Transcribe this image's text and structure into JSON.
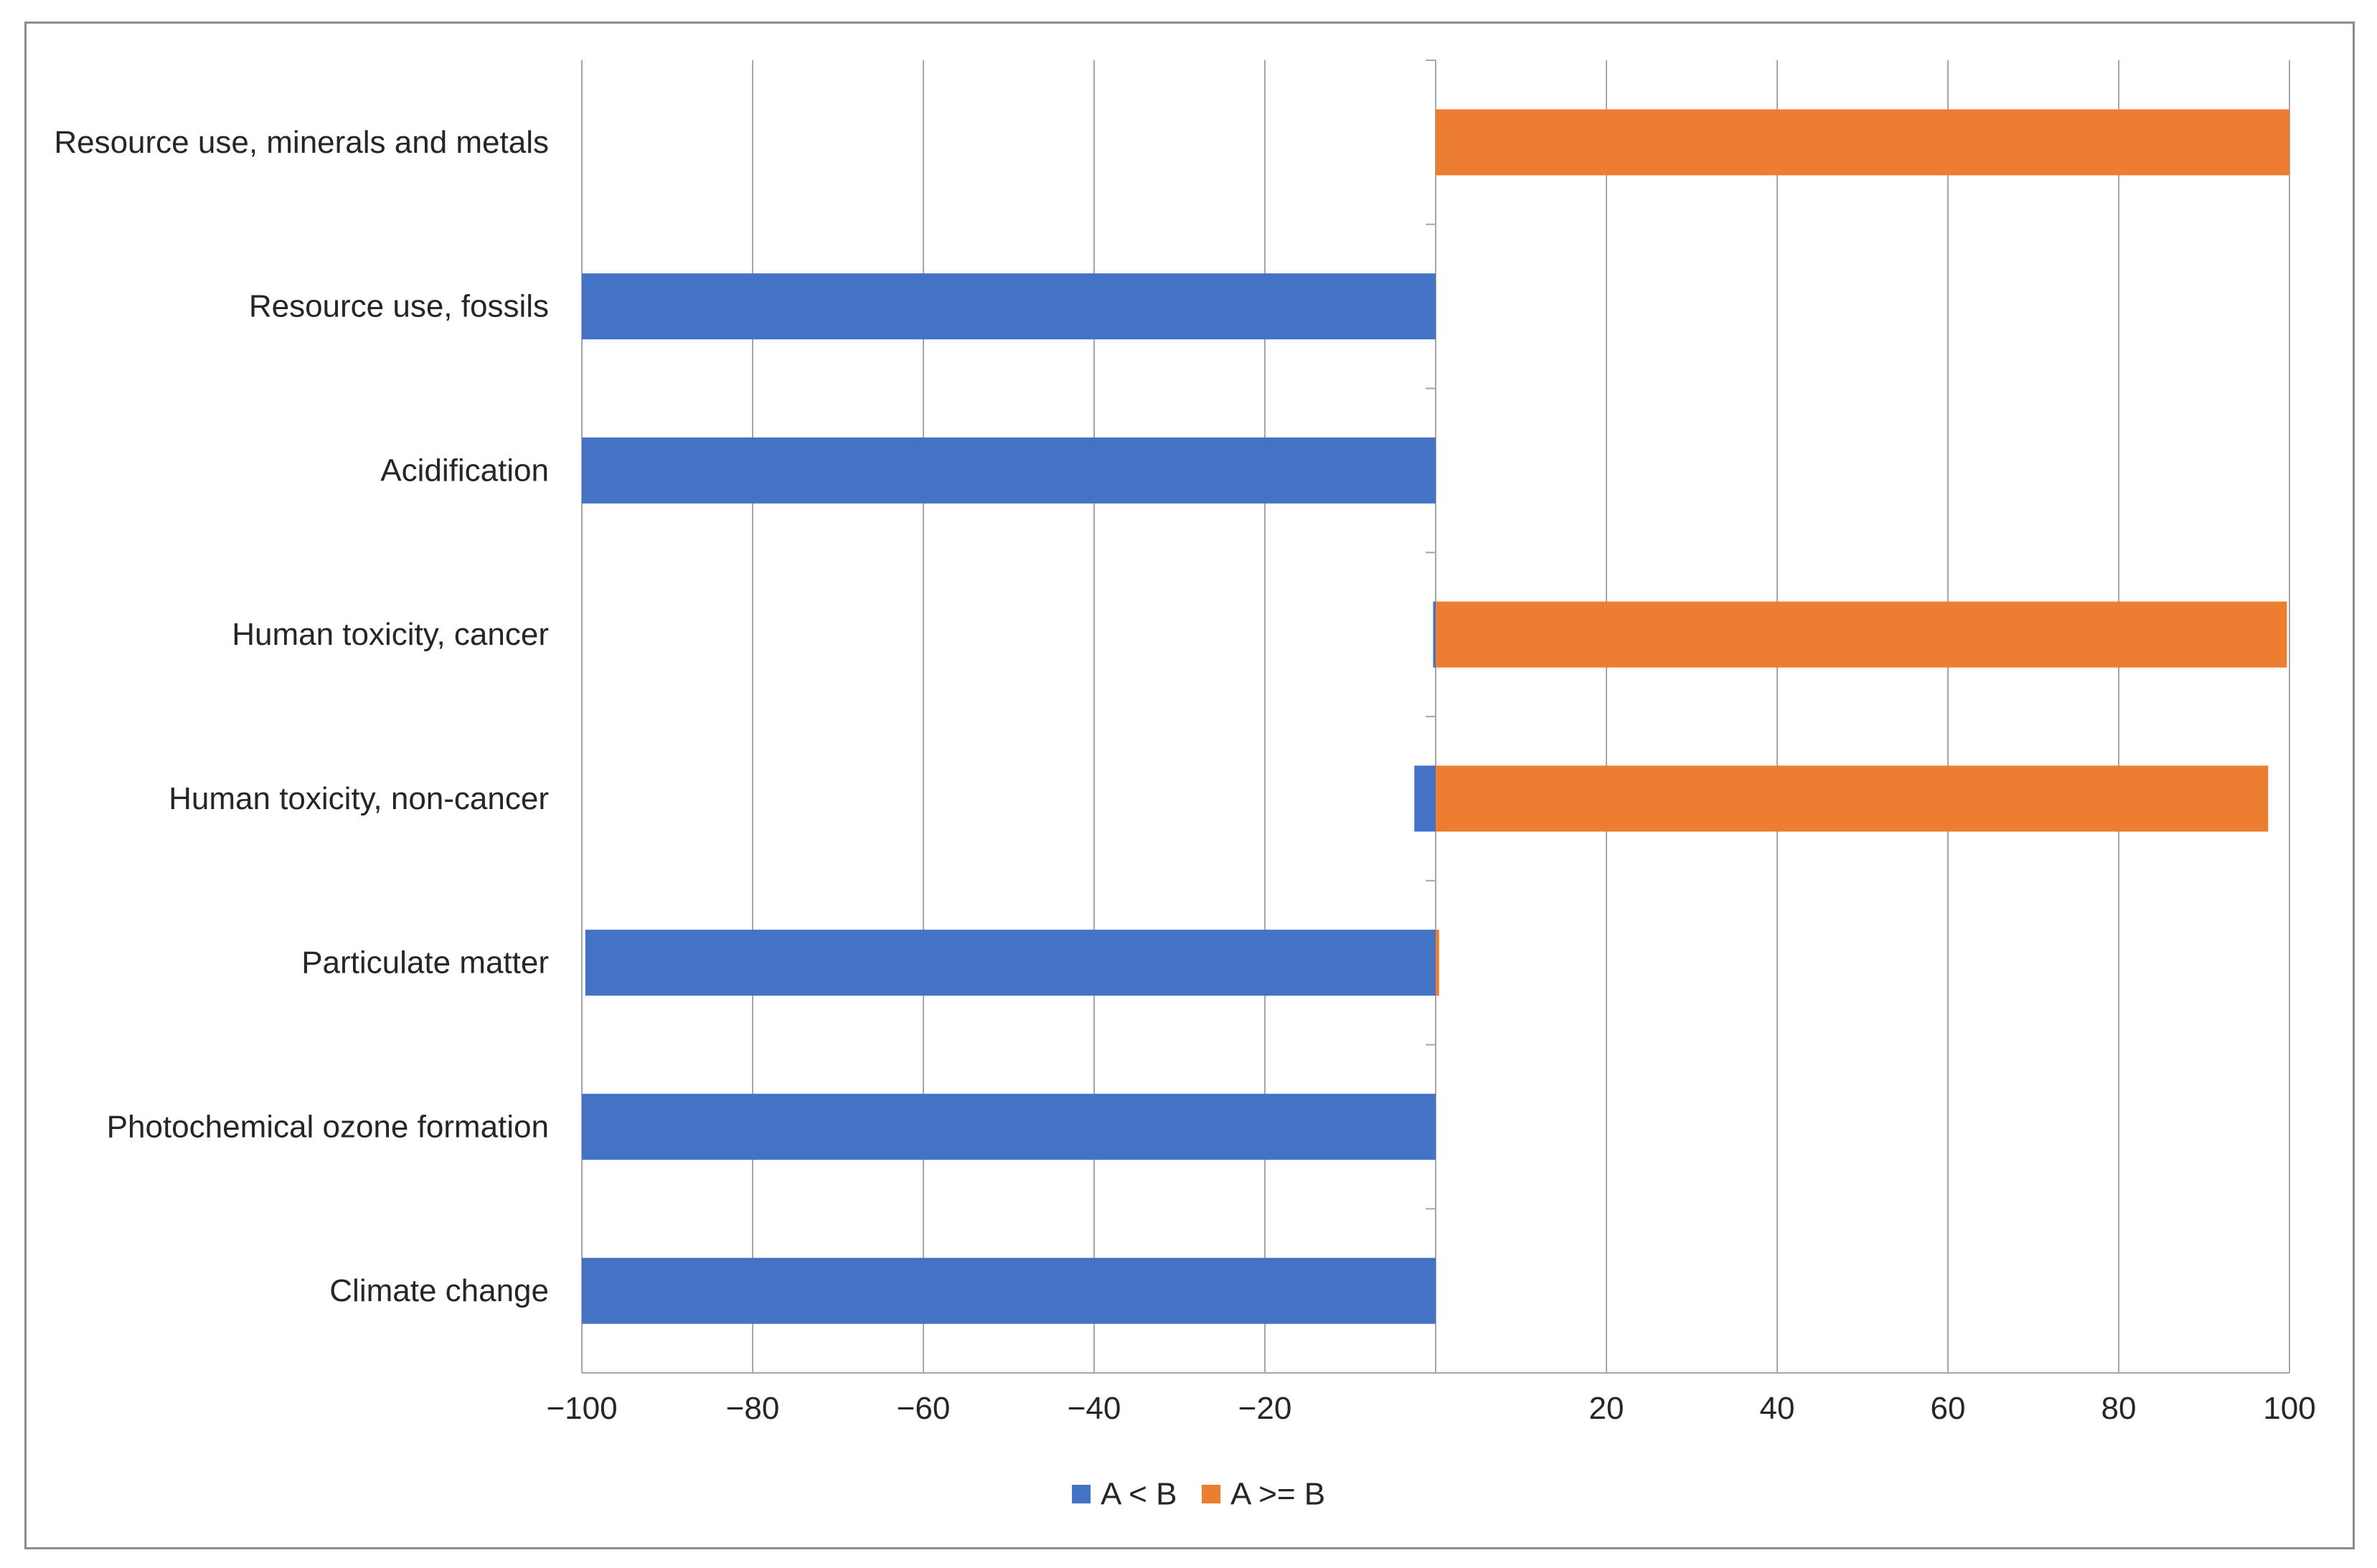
{
  "chart_data": {
    "type": "bar",
    "orientation": "horizontal",
    "stacked": true,
    "title": "",
    "xlabel": "",
    "ylabel": "",
    "xlim": [
      -100,
      100
    ],
    "xticks": [
      -100,
      -80,
      -60,
      -40,
      -20,
      20,
      40,
      60,
      80,
      100
    ],
    "xtick_labels": [
      "−100",
      "−80",
      "−60",
      "−40",
      "−20",
      "20",
      "40",
      "60",
      "80",
      "100"
    ],
    "grid": true,
    "legend_position": "bottom",
    "categories": [
      "Climate change",
      "Photochemical ozone formation",
      "Particulate matter",
      "Human toxicity, non-cancer",
      "Human toxicity, cancer",
      "Acidification",
      "Resource use, fossils",
      "Resource use, minerals and metals"
    ],
    "series": [
      {
        "name": "A < B",
        "color": "#4472C4",
        "values": [
          -100,
          -100,
          -99.6,
          -2.5,
          -0.3,
          -100,
          -100,
          0
        ]
      },
      {
        "name": "A >= B",
        "color": "#ED7D31",
        "values": [
          0,
          0,
          0.4,
          97.5,
          99.7,
          0,
          0,
          100
        ]
      }
    ]
  }
}
